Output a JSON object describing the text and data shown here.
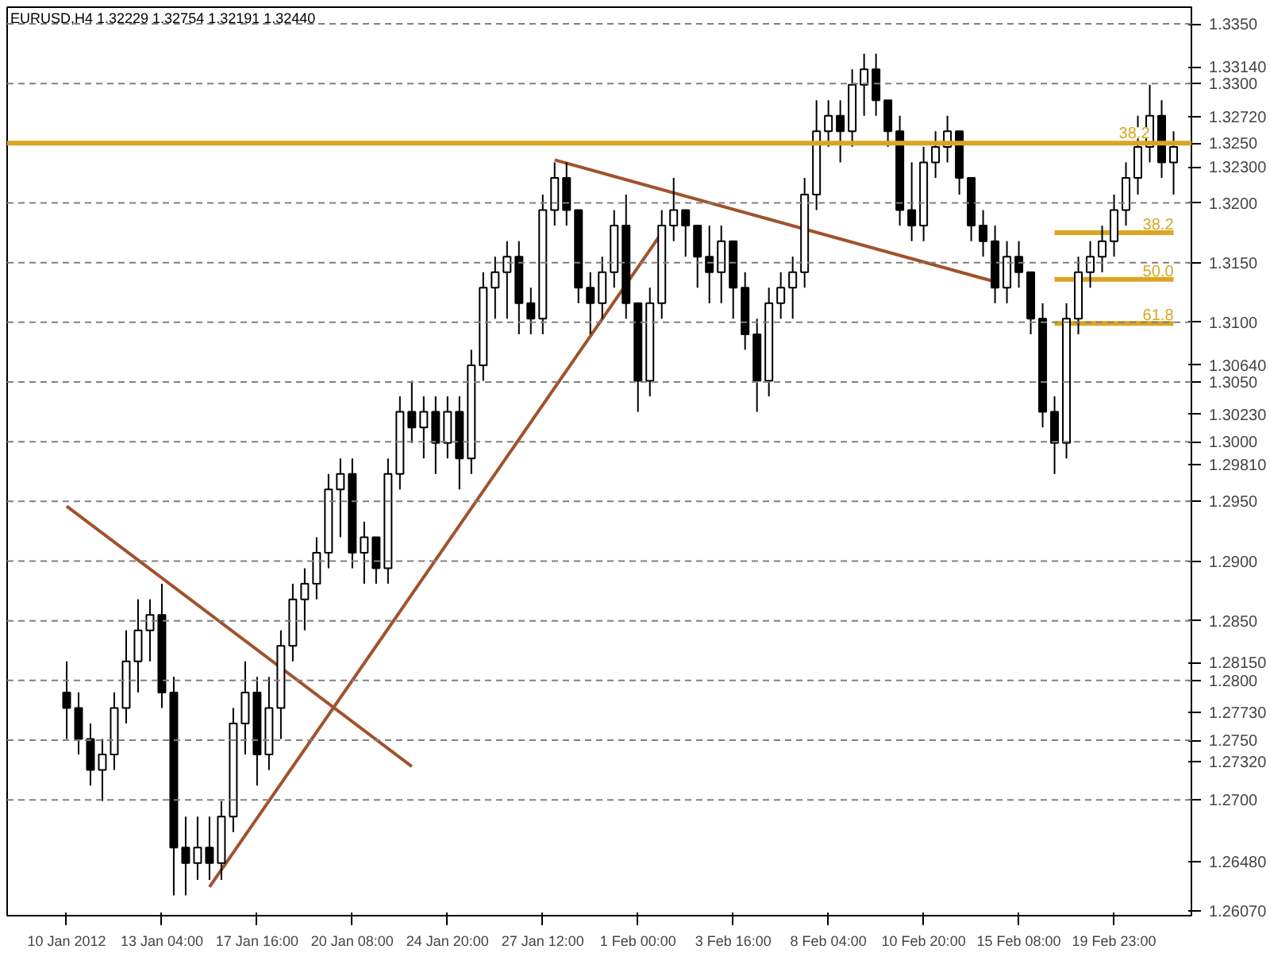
{
  "chart_data": {
    "type": "candlestick",
    "title": "EURUSD,H4  1.32229 1.32754 1.32191 1.32440",
    "categories": [
      "10 Jan 2012",
      null,
      null,
      null,
      null,
      null,
      null,
      null,
      "13 Jan 04:00",
      null,
      null,
      null,
      null,
      null,
      null,
      null,
      "17 Jan 16:00",
      null,
      null,
      null,
      null,
      null,
      null,
      null,
      "20 Jan 08:00",
      null,
      null,
      null,
      null,
      null,
      null,
      null,
      "24 Jan 20:00",
      null,
      null,
      null,
      null,
      null,
      null,
      null,
      "27 Jan 12:00",
      null,
      null,
      null,
      null,
      null,
      null,
      null,
      "1 Feb 00:00",
      null,
      null,
      null,
      null,
      null,
      null,
      null,
      "3 Feb 16:00",
      null,
      null,
      null,
      null,
      null,
      null,
      null,
      "8 Feb 04:00",
      null,
      null,
      null,
      null,
      null,
      null,
      null,
      "10 Feb 20:00",
      null,
      null,
      null,
      null,
      null,
      null,
      null,
      "15 Feb 08:00",
      null,
      null,
      null,
      null,
      null,
      null,
      null,
      "19 Feb 23:00",
      null,
      null,
      null,
      null,
      null
    ],
    "ohlc": [
      [
        1.279,
        1.2816,
        1.2751,
        1.2777
      ],
      [
        1.2777,
        1.279,
        1.2738,
        1.2751
      ],
      [
        1.2751,
        1.2764,
        1.2712,
        1.2725
      ],
      [
        1.2725,
        1.2751,
        1.2699,
        1.2738
      ],
      [
        1.2738,
        1.279,
        1.2725,
        1.2777
      ],
      [
        1.2777,
        1.2842,
        1.2764,
        1.2816
      ],
      [
        1.2816,
        1.2868,
        1.279,
        1.2842
      ],
      [
        1.2842,
        1.2868,
        1.2816,
        1.2855
      ],
      [
        1.2855,
        1.2881,
        1.2777,
        1.279
      ],
      [
        1.279,
        1.2803,
        1.262,
        1.266
      ],
      [
        1.266,
        1.2686,
        1.262,
        1.2647
      ],
      [
        1.2647,
        1.2686,
        1.2633,
        1.266
      ],
      [
        1.266,
        1.2686,
        1.2633,
        1.2647
      ],
      [
        1.2647,
        1.2699,
        1.2633,
        1.2686
      ],
      [
        1.2686,
        1.2777,
        1.2673,
        1.2764
      ],
      [
        1.2764,
        1.2816,
        1.2738,
        1.279
      ],
      [
        1.279,
        1.2803,
        1.2712,
        1.2738
      ],
      [
        1.2738,
        1.2803,
        1.2725,
        1.2777
      ],
      [
        1.2777,
        1.2842,
        1.2751,
        1.2829
      ],
      [
        1.2829,
        1.2881,
        1.2816,
        1.2868
      ],
      [
        1.2868,
        1.2894,
        1.2842,
        1.2881
      ],
      [
        1.2881,
        1.292,
        1.2868,
        1.2907
      ],
      [
        1.2907,
        1.2973,
        1.2894,
        1.296
      ],
      [
        1.296,
        1.2986,
        1.292,
        1.2973
      ],
      [
        1.2973,
        1.2986,
        1.2894,
        1.2907
      ],
      [
        1.2907,
        1.2933,
        1.2881,
        1.292
      ],
      [
        1.292,
        1.292,
        1.2881,
        1.2894
      ],
      [
        1.2894,
        1.2986,
        1.2881,
        1.2973
      ],
      [
        1.2973,
        1.3038,
        1.296,
        1.3025
      ],
      [
        1.3025,
        1.3051,
        1.2999,
        1.3012
      ],
      [
        1.3012,
        1.3038,
        1.2986,
        1.3025
      ],
      [
        1.3025,
        1.3038,
        1.2973,
        1.2999
      ],
      [
        1.2999,
        1.3038,
        1.2986,
        1.3025
      ],
      [
        1.3025,
        1.3038,
        1.296,
        1.2986
      ],
      [
        1.2986,
        1.3077,
        1.2973,
        1.3064
      ],
      [
        1.3064,
        1.3142,
        1.3051,
        1.3129
      ],
      [
        1.3129,
        1.3155,
        1.3103,
        1.3142
      ],
      [
        1.3142,
        1.3168,
        1.3103,
        1.3155
      ],
      [
        1.3155,
        1.3168,
        1.309,
        1.3116
      ],
      [
        1.3116,
        1.3129,
        1.309,
        1.3103
      ],
      [
        1.3103,
        1.3207,
        1.309,
        1.3194
      ],
      [
        1.3194,
        1.3234,
        1.3181,
        1.3221
      ],
      [
        1.3221,
        1.3234,
        1.3181,
        1.3194
      ],
      [
        1.3194,
        1.3194,
        1.3116,
        1.3129
      ],
      [
        1.3129,
        1.3142,
        1.309,
        1.3116
      ],
      [
        1.3116,
        1.3155,
        1.3103,
        1.3142
      ],
      [
        1.3142,
        1.3194,
        1.3129,
        1.3181
      ],
      [
        1.3181,
        1.3207,
        1.3103,
        1.3116
      ],
      [
        1.3116,
        1.3116,
        1.3025,
        1.3051
      ],
      [
        1.3051,
        1.3129,
        1.3038,
        1.3116
      ],
      [
        1.3116,
        1.3194,
        1.3103,
        1.3181
      ],
      [
        1.3181,
        1.3221,
        1.3168,
        1.3194
      ],
      [
        1.3194,
        1.3194,
        1.3155,
        1.3181
      ],
      [
        1.3181,
        1.3181,
        1.3129,
        1.3155
      ],
      [
        1.3155,
        1.3181,
        1.3116,
        1.3142
      ],
      [
        1.3142,
        1.3181,
        1.3116,
        1.3168
      ],
      [
        1.3168,
        1.3168,
        1.3103,
        1.3129
      ],
      [
        1.3129,
        1.3142,
        1.3077,
        1.309
      ],
      [
        1.309,
        1.3103,
        1.3025,
        1.3051
      ],
      [
        1.3051,
        1.3129,
        1.3038,
        1.3116
      ],
      [
        1.3116,
        1.3142,
        1.3103,
        1.3129
      ],
      [
        1.3129,
        1.3155,
        1.3103,
        1.3142
      ],
      [
        1.3142,
        1.3221,
        1.3129,
        1.3207
      ],
      [
        1.3207,
        1.3286,
        1.3194,
        1.326
      ],
      [
        1.326,
        1.3286,
        1.3247,
        1.3273
      ],
      [
        1.3273,
        1.3286,
        1.3234,
        1.326
      ],
      [
        1.326,
        1.3312,
        1.3247,
        1.3299
      ],
      [
        1.3299,
        1.3325,
        1.3273,
        1.3312
      ],
      [
        1.3312,
        1.3325,
        1.3273,
        1.3286
      ],
      [
        1.3286,
        1.3286,
        1.3247,
        1.326
      ],
      [
        1.326,
        1.3273,
        1.3181,
        1.3194
      ],
      [
        1.3194,
        1.3234,
        1.3168,
        1.3181
      ],
      [
        1.3181,
        1.3247,
        1.3168,
        1.3234
      ],
      [
        1.3234,
        1.326,
        1.3221,
        1.3247
      ],
      [
        1.3247,
        1.3273,
        1.3234,
        1.326
      ],
      [
        1.326,
        1.326,
        1.3207,
        1.3221
      ],
      [
        1.3221,
        1.3221,
        1.3168,
        1.3181
      ],
      [
        1.3181,
        1.3194,
        1.3155,
        1.3168
      ],
      [
        1.3168,
        1.3181,
        1.3116,
        1.3129
      ],
      [
        1.3129,
        1.3168,
        1.3116,
        1.3155
      ],
      [
        1.3155,
        1.3168,
        1.3129,
        1.3142
      ],
      [
        1.3142,
        1.3142,
        1.309,
        1.3103
      ],
      [
        1.3103,
        1.3116,
        1.3012,
        1.3025
      ],
      [
        1.3025,
        1.3038,
        1.2973,
        1.2999
      ],
      [
        1.2999,
        1.3116,
        1.2986,
        1.3103
      ],
      [
        1.3103,
        1.3155,
        1.309,
        1.3142
      ],
      [
        1.3142,
        1.3168,
        1.3129,
        1.3155
      ],
      [
        1.3155,
        1.3181,
        1.3142,
        1.3168
      ],
      [
        1.3168,
        1.3207,
        1.3155,
        1.3194
      ],
      [
        1.3194,
        1.3234,
        1.3181,
        1.3221
      ],
      [
        1.3221,
        1.3273,
        1.3207,
        1.3247
      ],
      [
        1.3247,
        1.3299,
        1.3234,
        1.3273
      ],
      [
        1.3273,
        1.3286,
        1.3221,
        1.3234
      ],
      [
        1.3234,
        1.326,
        1.3207,
        1.3247
      ]
    ],
    "series": [
      {
        "type": "line",
        "color": "#a0522d",
        "values": [
          1.2946,
          null,
          null,
          null,
          null,
          null,
          null,
          null,
          null,
          null,
          null,
          null,
          null,
          null,
          null,
          null,
          null,
          null,
          null,
          null,
          null,
          null,
          null,
          null,
          null,
          null,
          null,
          null,
          null,
          1.2728,
          null,
          null,
          null,
          null,
          null,
          null,
          null,
          null,
          null,
          null,
          null,
          null,
          null,
          null,
          null,
          null,
          null,
          null,
          null,
          null,
          null,
          null,
          null,
          null,
          null,
          null,
          null,
          null,
          null,
          null,
          null,
          null,
          null,
          null,
          null,
          null,
          null,
          null,
          null,
          null,
          null,
          null,
          null,
          null,
          null,
          null,
          null,
          null,
          null,
          null,
          null,
          null,
          null,
          null,
          null,
          null,
          null,
          null,
          null,
          null,
          null,
          null,
          null,
          null
        ]
      },
      {
        "type": "line",
        "color": "#a0522d",
        "values": [
          null,
          null,
          null,
          null,
          null,
          null,
          null,
          null,
          null,
          null,
          null,
          null,
          1.2627,
          null,
          null,
          null,
          null,
          null,
          null,
          null,
          null,
          null,
          null,
          null,
          null,
          null,
          null,
          null,
          null,
          null,
          null,
          null,
          null,
          null,
          null,
          null,
          null,
          null,
          null,
          null,
          null,
          null,
          null,
          null,
          null,
          null,
          null,
          null,
          null,
          null,
          1.3175,
          null,
          null,
          null,
          null,
          null,
          null,
          null,
          null,
          null,
          null,
          null,
          null,
          null,
          null,
          null,
          null,
          null,
          null,
          null,
          null,
          null,
          null,
          null,
          null,
          null,
          null,
          null,
          null,
          null,
          null,
          null,
          null,
          null,
          null,
          null,
          null,
          null,
          null,
          null,
          null,
          null,
          null,
          null
        ]
      },
      {
        "type": "line",
        "color": "#a0522d",
        "values": [
          null,
          null,
          null,
          null,
          null,
          null,
          null,
          null,
          null,
          null,
          null,
          null,
          null,
          null,
          null,
          null,
          null,
          null,
          null,
          null,
          null,
          null,
          null,
          null,
          null,
          null,
          null,
          null,
          null,
          null,
          null,
          null,
          null,
          null,
          null,
          null,
          null,
          null,
          null,
          null,
          null,
          1.3236,
          null,
          null,
          null,
          null,
          null,
          null,
          null,
          null,
          null,
          null,
          null,
          null,
          null,
          null,
          null,
          null,
          null,
          null,
          null,
          null,
          null,
          null,
          null,
          null,
          null,
          null,
          null,
          null,
          null,
          null,
          null,
          null,
          null,
          null,
          null,
          null,
          1.3134,
          null,
          null,
          null,
          null,
          null,
          null,
          null,
          null,
          null,
          null,
          null,
          null,
          null,
          null,
          null
        ]
      },
      {
        "type": "line",
        "name": "38.2",
        "color": "#daa520",
        "values": [
          null,
          null,
          null,
          null,
          null,
          null,
          null,
          null,
          null,
          null,
          null,
          null,
          null,
          null,
          null,
          null,
          null,
          null,
          null,
          null,
          null,
          null,
          null,
          null,
          null,
          null,
          null,
          null,
          null,
          null,
          null,
          null,
          null,
          null,
          null,
          null,
          null,
          null,
          null,
          null,
          null,
          null,
          null,
          null,
          null,
          null,
          null,
          null,
          null,
          null,
          null,
          null,
          null,
          null,
          null,
          null,
          null,
          null,
          null,
          null,
          null,
          null,
          null,
          null,
          null,
          null,
          null,
          null,
          null,
          null,
          null,
          null,
          null,
          null,
          null,
          null,
          null,
          null,
          null,
          null,
          null,
          null,
          null,
          1.3175,
          1.3175,
          1.3175,
          1.3175,
          1.3175,
          1.3175,
          1.3175,
          1.3175,
          1.3175,
          1.3175,
          1.3175
        ]
      },
      {
        "type": "line",
        "name": "50.0",
        "color": "#daa520",
        "values": [
          null,
          null,
          null,
          null,
          null,
          null,
          null,
          null,
          null,
          null,
          null,
          null,
          null,
          null,
          null,
          null,
          null,
          null,
          null,
          null,
          null,
          null,
          null,
          null,
          null,
          null,
          null,
          null,
          null,
          null,
          null,
          null,
          null,
          null,
          null,
          null,
          null,
          null,
          null,
          null,
          null,
          null,
          null,
          null,
          null,
          null,
          null,
          null,
          null,
          null,
          null,
          null,
          null,
          null,
          null,
          null,
          null,
          null,
          null,
          null,
          null,
          null,
          null,
          null,
          null,
          null,
          null,
          null,
          null,
          null,
          null,
          null,
          null,
          null,
          null,
          null,
          null,
          null,
          null,
          null,
          null,
          null,
          null,
          1.3136,
          1.3136,
          1.3136,
          1.3136,
          1.3136,
          1.3136,
          1.3136,
          1.3136,
          1.3136,
          1.3136,
          1.3136
        ]
      },
      {
        "type": "line",
        "name": "61.8",
        "color": "#daa520",
        "values": [
          null,
          null,
          null,
          null,
          null,
          null,
          null,
          null,
          null,
          null,
          null,
          null,
          null,
          null,
          null,
          null,
          null,
          null,
          null,
          null,
          null,
          null,
          null,
          null,
          null,
          null,
          null,
          null,
          null,
          null,
          null,
          null,
          null,
          null,
          null,
          null,
          null,
          null,
          null,
          null,
          null,
          null,
          null,
          null,
          null,
          null,
          null,
          null,
          null,
          null,
          null,
          null,
          null,
          null,
          null,
          null,
          null,
          null,
          null,
          null,
          null,
          null,
          null,
          null,
          null,
          null,
          null,
          null,
          null,
          null,
          null,
          null,
          null,
          null,
          null,
          null,
          null,
          null,
          null,
          null,
          null,
          null,
          null,
          1.3099,
          1.3099,
          1.3099,
          1.3099,
          1.3099,
          1.3099,
          1.3099,
          1.3099,
          1.3099,
          1.3099,
          1.3099
        ]
      }
    ],
    "ylim": [
      1.2603,
      1.3364
    ],
    "yticks": [
      {
        "value": 1.335,
        "label": "1.3350"
      },
      {
        "value": 1.3314,
        "label": "1.33140"
      },
      {
        "value": 1.33,
        "label": "1.3300"
      },
      {
        "value": 1.3272,
        "label": "1.32720"
      },
      {
        "value": 1.325,
        "label": "1.3250"
      },
      {
        "value": 1.323,
        "label": "1.32300"
      },
      {
        "value": 1.32,
        "label": "1.3200"
      },
      {
        "value": 1.315,
        "label": "1.3150"
      },
      {
        "value": 1.31,
        "label": "1.3100"
      },
      {
        "value": 1.3064,
        "label": "1.30640"
      },
      {
        "value": 1.305,
        "label": "1.3050"
      },
      {
        "value": 1.3023,
        "label": "1.30230"
      },
      {
        "value": 1.3,
        "label": "1.3000"
      },
      {
        "value": 1.2981,
        "label": "1.29810"
      },
      {
        "value": 1.295,
        "label": "1.2950"
      },
      {
        "value": 1.29,
        "label": "1.2900"
      },
      {
        "value": 1.285,
        "label": "1.2850"
      },
      {
        "value": 1.2815,
        "label": "1.28150"
      },
      {
        "value": 1.28,
        "label": "1.2800"
      },
      {
        "value": 1.2773,
        "label": "1.27730"
      },
      {
        "value": 1.275,
        "label": "1.2750"
      },
      {
        "value": 1.2732,
        "label": "1.27320"
      },
      {
        "value": 1.27,
        "label": "1.2700"
      },
      {
        "value": 1.2648,
        "label": "1.26480"
      },
      {
        "value": 1.2607,
        "label": "1.26070"
      }
    ],
    "ref_lines": [
      {
        "axis": "y",
        "value": 1.335,
        "color": "#808080",
        "line_style": "dashed"
      },
      {
        "axis": "y",
        "value": 1.33,
        "color": "#808080",
        "line_style": "dashed"
      },
      {
        "axis": "y",
        "value": 1.325,
        "color": "#daa520",
        "line_style": "solid"
      },
      {
        "axis": "y",
        "value": 1.32,
        "color": "#808080",
        "line_style": "dashed"
      },
      {
        "axis": "y",
        "value": 1.315,
        "color": "#808080",
        "line_style": "dashed"
      },
      {
        "axis": "y",
        "value": 1.31,
        "color": "#808080",
        "line_style": "dashed"
      },
      {
        "axis": "y",
        "value": 1.305,
        "color": "#808080",
        "line_style": "dashed"
      },
      {
        "axis": "y",
        "value": 1.3,
        "color": "#808080",
        "line_style": "dashed"
      },
      {
        "axis": "y",
        "value": 1.295,
        "color": "#808080",
        "line_style": "dashed"
      },
      {
        "axis": "y",
        "value": 1.29,
        "color": "#808080",
        "line_style": "dashed"
      },
      {
        "axis": "y",
        "value": 1.285,
        "color": "#808080",
        "line_style": "dashed"
      },
      {
        "axis": "y",
        "value": 1.28,
        "color": "#808080",
        "line_style": "dashed"
      },
      {
        "axis": "y",
        "value": 1.275,
        "color": "#808080",
        "line_style": "dashed"
      },
      {
        "axis": "y",
        "value": 1.27,
        "color": "#808080",
        "line_style": "dashed"
      }
    ],
    "annotations": [
      {
        "text": "38.2",
        "y": 1.325
      }
    ]
  }
}
